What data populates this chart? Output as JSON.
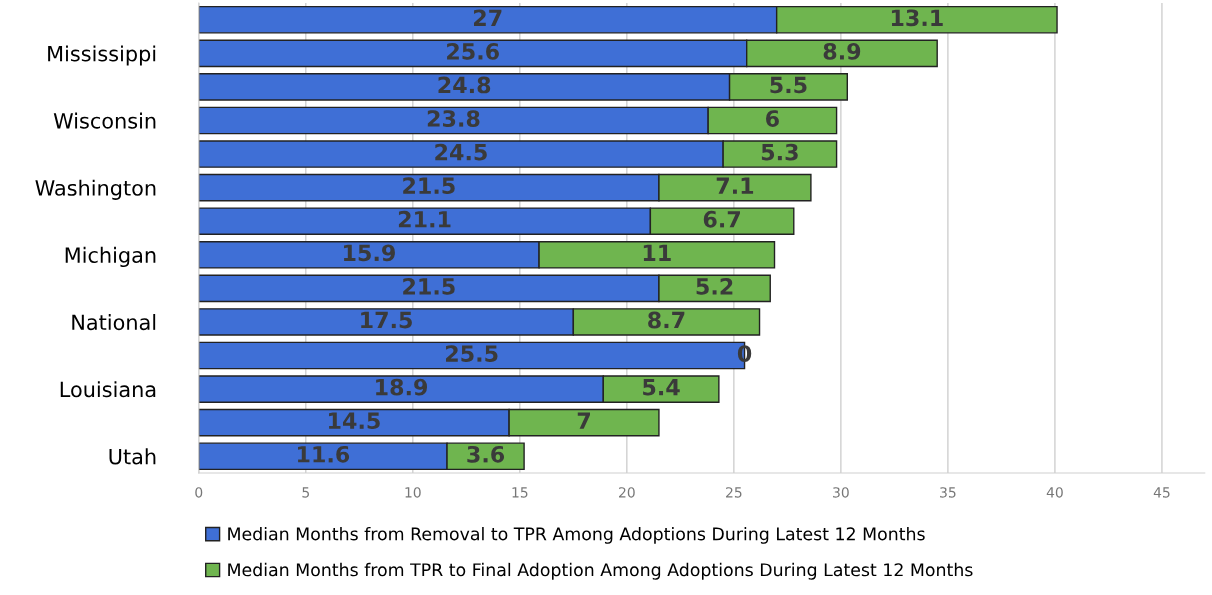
{
  "chart_data": {
    "type": "bar",
    "orientation": "horizontal",
    "stacked": true,
    "categories": [
      null,
      "Mississippi",
      null,
      "Wisconsin",
      null,
      "Washington",
      null,
      "Michigan",
      null,
      "National",
      null,
      "Louisiana",
      null,
      "Utah"
    ],
    "series": [
      {
        "name": "Median Months from Removal to TPR Among Adoptions During Latest 12 Months",
        "color": "#3f6fd6",
        "values": [
          27,
          25.6,
          24.8,
          23.8,
          24.5,
          21.5,
          21.1,
          15.9,
          21.5,
          17.5,
          25.5,
          18.9,
          14.5,
          11.6
        ]
      },
      {
        "name": "Median Months from TPR to Final Adoption Among Adoptions During Latest 12 Months",
        "color": "#6fb54f",
        "values": [
          13.1,
          8.9,
          5.5,
          6,
          5.3,
          7.1,
          6.7,
          11,
          5.2,
          8.7,
          0,
          5.4,
          7,
          3.6
        ]
      }
    ],
    "xlim": [
      0,
      47
    ],
    "xticks": [
      0,
      5,
      10,
      15,
      20,
      25,
      30,
      35,
      40,
      45
    ],
    "grid": "x",
    "legend": "bottom",
    "data_labels": true
  }
}
